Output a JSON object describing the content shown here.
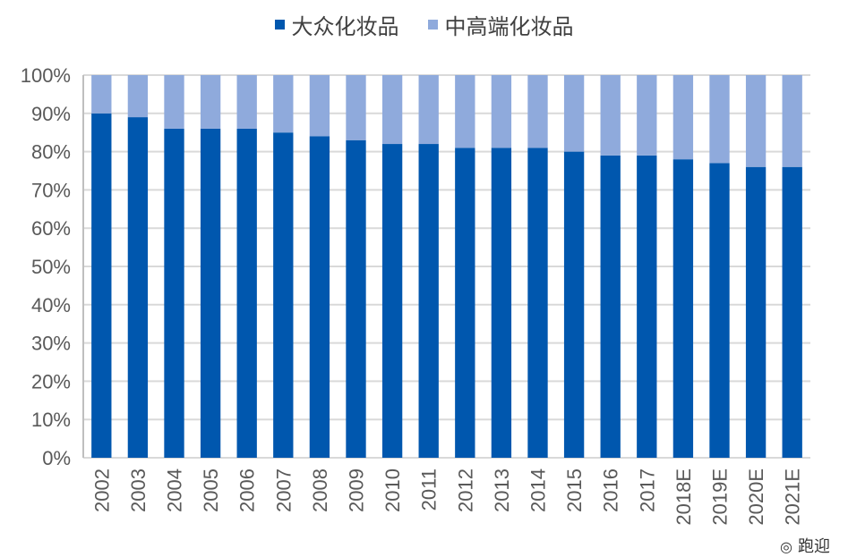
{
  "chart_data": {
    "type": "bar",
    "stacked": true,
    "percent": true,
    "categories": [
      "2002",
      "2003",
      "2004",
      "2005",
      "2006",
      "2007",
      "2008",
      "2009",
      "2010",
      "2011",
      "2012",
      "2013",
      "2014",
      "2015",
      "2016",
      "2017",
      "2018E",
      "2019E",
      "2020E",
      "2021E"
    ],
    "series": [
      {
        "name": "大众化妆品",
        "color": "#0057AE",
        "values": [
          90,
          89,
          86,
          86,
          86,
          85,
          84,
          83,
          82,
          82,
          81,
          81,
          81,
          80,
          79,
          79,
          78,
          77,
          76,
          76
        ]
      },
      {
        "name": "中高端化妆品",
        "color": "#8FAADC",
        "values": [
          10,
          11,
          14,
          14,
          14,
          15,
          16,
          17,
          18,
          18,
          19,
          19,
          19,
          20,
          21,
          21,
          22,
          23,
          24,
          24
        ]
      }
    ],
    "yticks": [
      "0%",
      "10%",
      "20%",
      "30%",
      "40%",
      "50%",
      "60%",
      "70%",
      "80%",
      "90%",
      "100%"
    ],
    "ylim": [
      0,
      100
    ],
    "grid": true,
    "legend": "top-center",
    "title": "",
    "xlabel": "",
    "ylabel": ""
  },
  "watermark": "跑迎"
}
